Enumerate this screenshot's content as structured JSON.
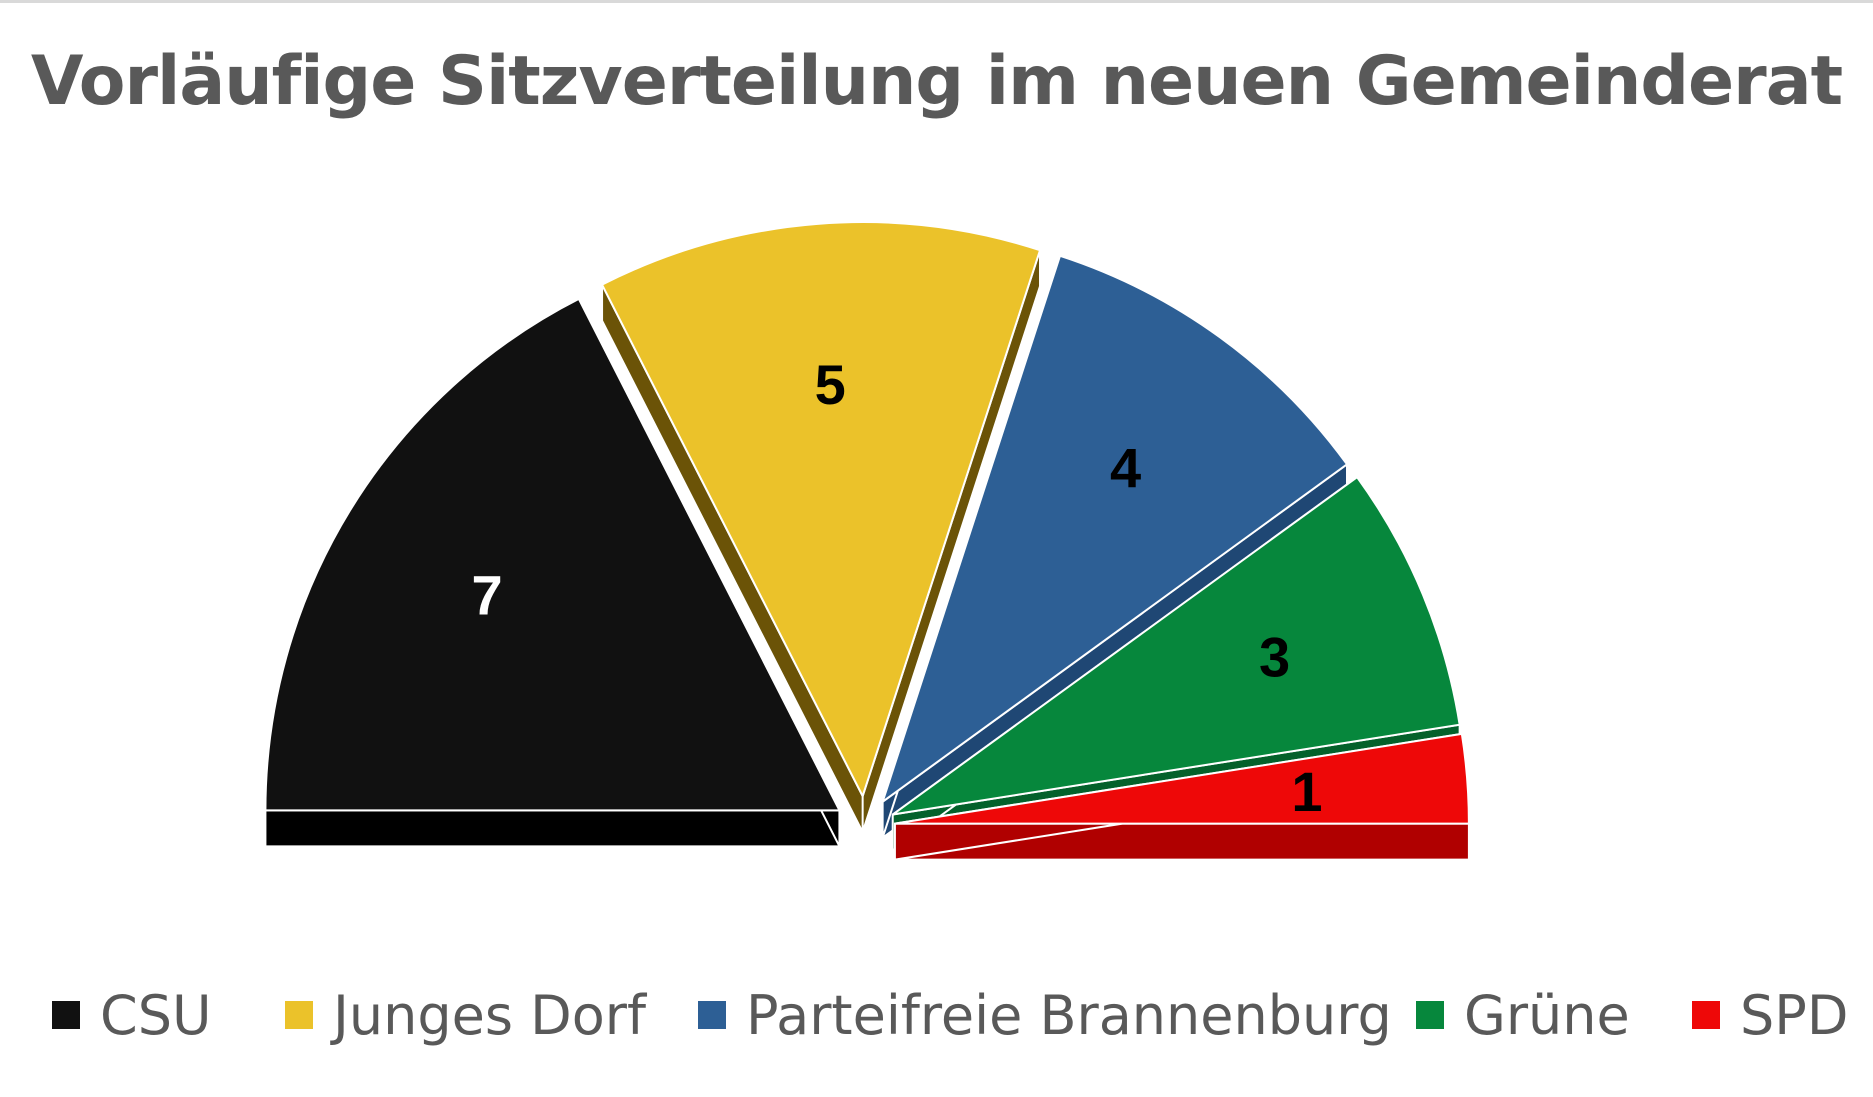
{
  "chart_data": {
    "type": "pie",
    "subtype": "exploded-semicircle-3d",
    "title": "Vorläufige Sitzverteilung im neuen Gemeinderat",
    "categories": [
      "CSU",
      "Junges Dorf",
      "Parteifreie Brannenburg",
      "Grüne",
      "SPD"
    ],
    "values": [
      7,
      5,
      4,
      3,
      1
    ],
    "data_labels": [
      "7",
      "5",
      "4",
      "3",
      "1"
    ],
    "colors": [
      "#111111",
      "#ebc22a",
      "#2d5f95",
      "#06873c",
      "#ee0808"
    ],
    "side_colors": [
      "#000000",
      "#6b5307",
      "#1f4774",
      "#04612b",
      "#b00000"
    ],
    "label_colors": [
      "#ffffff",
      "#000000",
      "#000000",
      "#000000",
      "#000000"
    ],
    "legend_position": "bottom"
  }
}
